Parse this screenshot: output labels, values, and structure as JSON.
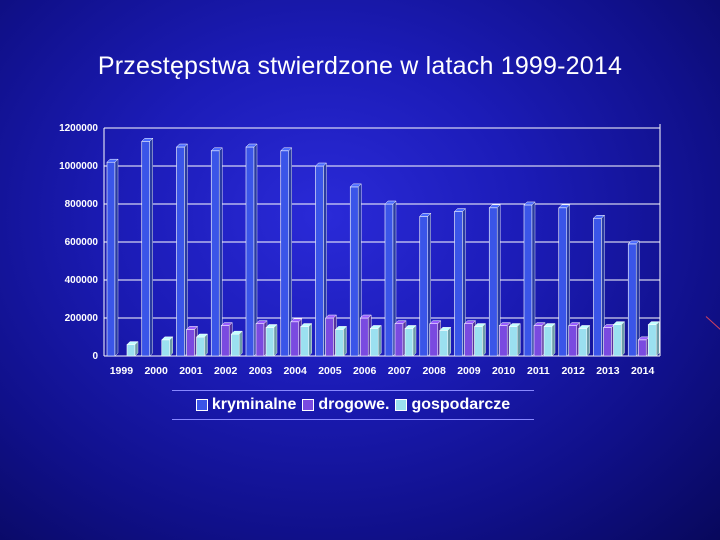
{
  "slide": {
    "title": "Przestępstwa stwierdzone w latach 1999-2014"
  },
  "chart_data": {
    "type": "bar",
    "categories": [
      "1999",
      "2000",
      "2001",
      "2002",
      "2003",
      "2004",
      "2005",
      "2006",
      "2007",
      "2008",
      "2009",
      "2010",
      "2011",
      "2012",
      "2013",
      "2014"
    ],
    "series": [
      {
        "name": "kryminalne",
        "color": "#3a55e8",
        "values": [
          1020000,
          1130000,
          1100000,
          1080000,
          1100000,
          1080000,
          1000000,
          890000,
          800000,
          735000,
          760000,
          780000,
          795000,
          780000,
          725000,
          590000
        ]
      },
      {
        "name": "drogowe.",
        "color": "#7a4ae0",
        "values": [
          0,
          0,
          140000,
          160000,
          170000,
          180000,
          200000,
          200000,
          170000,
          170000,
          170000,
          160000,
          160000,
          160000,
          150000,
          85000
        ]
      },
      {
        "name": "gospodarcze",
        "color": "#9be0f0",
        "values": [
          60000,
          85000,
          100000,
          115000,
          150000,
          155000,
          140000,
          145000,
          145000,
          135000,
          155000,
          155000,
          155000,
          145000,
          165000,
          165000
        ]
      }
    ],
    "yticks": [
      "1200000",
      "1000000",
      "800000",
      "600000",
      "400000",
      "200000",
      "0"
    ],
    "ylim": [
      0,
      1200000
    ],
    "grid": true,
    "legend_position": "bottom"
  }
}
